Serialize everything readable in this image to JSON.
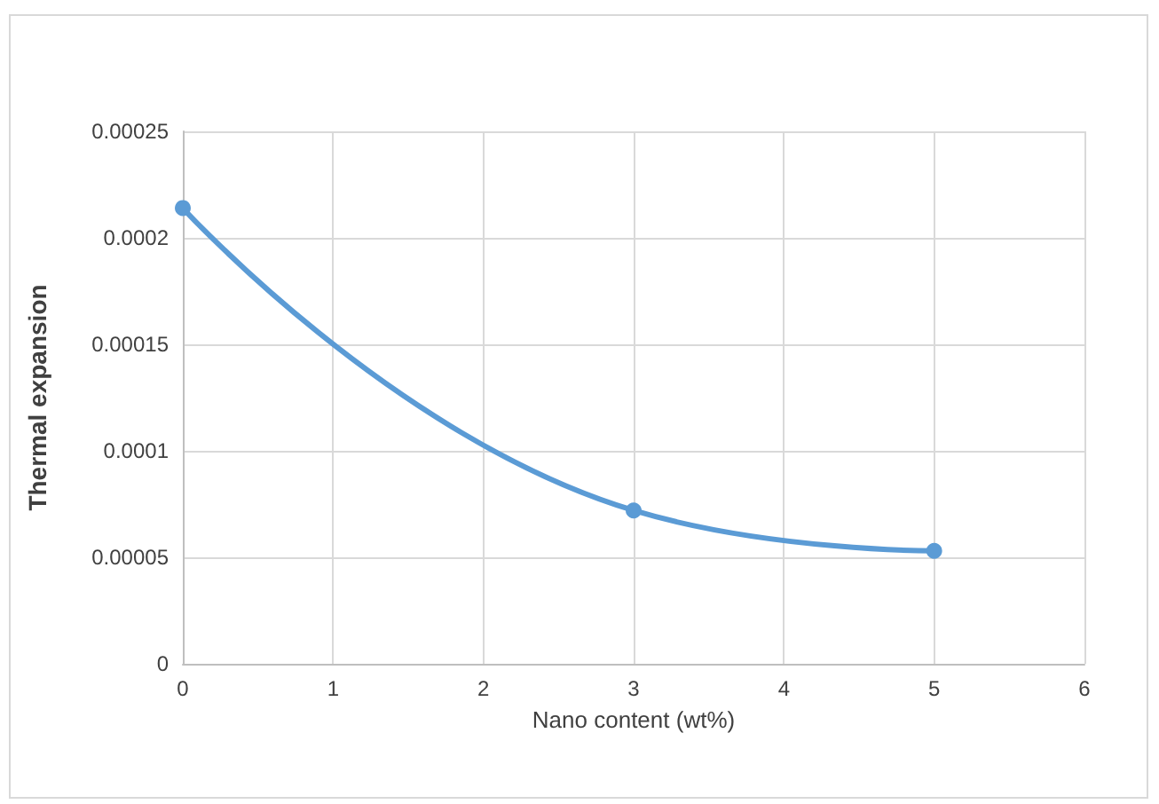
{
  "chart_data": {
    "type": "line",
    "xlabel": "Nano content (wt%)",
    "ylabel": "Thermal expansion",
    "x": [
      0,
      3,
      5
    ],
    "series": [
      {
        "color": "#5b9bd5",
        "values": [
          0.000214,
          7.2e-05,
          5.3e-05
        ]
      }
    ],
    "xlim": [
      0,
      6
    ],
    "xticks": [
      0,
      1,
      2,
      3,
      4,
      5,
      6
    ],
    "ylim": [
      0,
      0.00025
    ],
    "yticks": [
      0,
      {
        "value": 5e-05,
        "label": "0.00005"
      },
      0.0001,
      0.00015,
      0.0002,
      0.00025
    ],
    "grid": true,
    "marker": "circle",
    "line_style": "solid"
  }
}
